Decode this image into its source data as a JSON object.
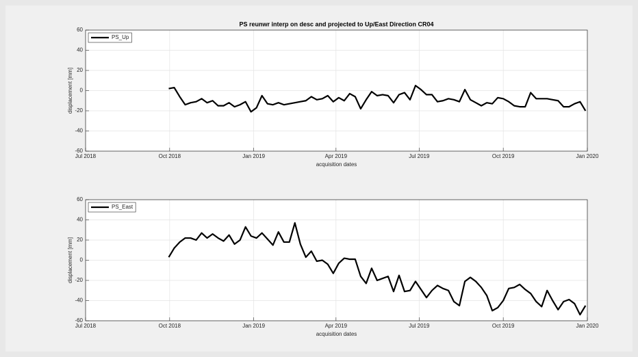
{
  "chart_data": [
    {
      "type": "line",
      "title": "PS reunwr interp on desc and projected to Up/East Direction CR04",
      "xlabel": "acquisition dates",
      "ylabel": "displacement [mm]",
      "x": [
        91,
        97,
        103,
        109,
        115,
        121,
        127,
        133,
        139,
        145,
        151,
        157,
        163,
        169,
        175,
        181,
        187,
        193,
        199,
        205,
        211,
        217,
        223,
        229,
        235,
        241,
        247,
        253,
        259,
        265,
        271,
        277,
        283,
        289,
        295,
        301,
        307,
        313,
        319,
        325,
        331,
        337,
        343,
        349,
        355,
        361,
        367,
        373,
        379,
        385,
        391,
        397,
        403,
        409,
        415,
        421,
        427,
        433,
        439,
        445,
        451,
        457,
        463,
        469,
        475,
        481,
        487,
        493,
        499,
        505,
        511,
        517,
        523,
        529,
        535,
        541,
        547
      ],
      "series": [
        {
          "name": "PS_Up",
          "color": "#000000",
          "values": [
            2,
            3,
            -6,
            -14,
            -12,
            -11,
            -8,
            -12,
            -10,
            -15,
            -15,
            -12,
            -16,
            -14,
            -11,
            -21,
            -17,
            -5,
            -13,
            -14,
            -12,
            -14,
            -13,
            -12,
            -11,
            -10,
            -6,
            -9,
            -8,
            -5,
            -11,
            -7,
            -10,
            -3,
            -6,
            -18,
            -9,
            -1,
            -5,
            -4,
            -5,
            -12,
            -4,
            -2,
            -9,
            5,
            1,
            -4,
            -4,
            -11,
            -10,
            -8,
            -9,
            -11,
            1,
            -9,
            -12,
            -15,
            -12,
            -13,
            -7,
            -8,
            -11,
            -15,
            -16,
            -16,
            -2,
            -8,
            -8,
            -8,
            -9,
            -10,
            -16,
            -16,
            -13,
            -11,
            -20
          ]
        }
      ],
      "xlim": [
        0,
        549
      ],
      "xticks": [
        {
          "value": 0,
          "label": "Jul 2018"
        },
        {
          "value": 92,
          "label": "Oct 2018"
        },
        {
          "value": 184,
          "label": "Jan 2019"
        },
        {
          "value": 274,
          "label": "Apr 2019"
        },
        {
          "value": 365,
          "label": "Jul 2019"
        },
        {
          "value": 457,
          "label": "Oct 2019"
        },
        {
          "value": 549,
          "label": "Jan 2020"
        }
      ],
      "ylim": [
        -60,
        60
      ],
      "yticks": [
        -60,
        -40,
        -20,
        0,
        20,
        40,
        60
      ],
      "grid": true,
      "legend": "upper-left"
    },
    {
      "type": "line",
      "xlabel": "acquisition dates",
      "ylabel": "displacement [mm]",
      "x": [
        91,
        97,
        103,
        109,
        115,
        121,
        127,
        133,
        139,
        145,
        151,
        157,
        163,
        169,
        175,
        181,
        187,
        193,
        199,
        205,
        211,
        217,
        223,
        229,
        235,
        241,
        247,
        253,
        259,
        265,
        271,
        277,
        283,
        289,
        295,
        301,
        307,
        313,
        319,
        325,
        331,
        337,
        343,
        349,
        355,
        361,
        367,
        373,
        379,
        385,
        391,
        397,
        403,
        409,
        415,
        421,
        427,
        433,
        439,
        445,
        451,
        457,
        463,
        469,
        475,
        481,
        487,
        493,
        499,
        505,
        511,
        517,
        523,
        529,
        535,
        541,
        547
      ],
      "series": [
        {
          "name": "PS_East",
          "color": "#000000",
          "values": [
            3,
            12,
            18,
            22,
            22,
            20,
            27,
            22,
            26,
            22,
            19,
            25,
            16,
            20,
            33,
            24,
            22,
            27,
            21,
            15,
            28,
            18,
            18,
            37,
            16,
            3,
            9,
            -1,
            0,
            -4,
            -13,
            -3,
            2,
            1,
            1,
            -16,
            -23,
            -8,
            -20,
            -18,
            -16,
            -31,
            -15,
            -31,
            -30,
            -21,
            -29,
            -37,
            -30,
            -25,
            -28,
            -30,
            -41,
            -45,
            -21,
            -17,
            -21,
            -27,
            -35,
            -50,
            -47,
            -40,
            -28,
            -27,
            -24,
            -29,
            -33,
            -41,
            -46,
            -30,
            -40,
            -49,
            -41,
            -39,
            -43,
            -54,
            -45
          ]
        }
      ],
      "xlim": [
        0,
        549
      ],
      "xticks": [
        {
          "value": 0,
          "label": "Jul 2018"
        },
        {
          "value": 92,
          "label": "Oct 2018"
        },
        {
          "value": 184,
          "label": "Jan 2019"
        },
        {
          "value": 274,
          "label": "Apr 2019"
        },
        {
          "value": 365,
          "label": "Jul 2019"
        },
        {
          "value": 457,
          "label": "Oct 2019"
        },
        {
          "value": 549,
          "label": "Jan 2020"
        }
      ],
      "ylim": [
        -60,
        60
      ],
      "yticks": [
        -60,
        -40,
        -20,
        0,
        20,
        40,
        60
      ],
      "grid": true,
      "legend": "upper-left"
    }
  ]
}
